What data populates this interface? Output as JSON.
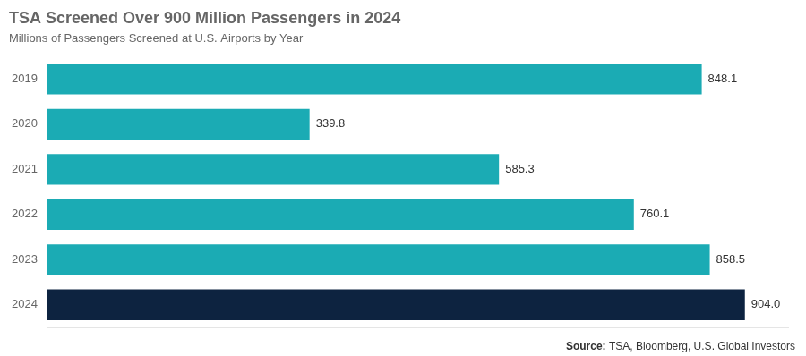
{
  "chart_data": {
    "type": "bar",
    "orientation": "horizontal",
    "title": "TSA Screened Over 900 Million Passengers in 2024",
    "subtitle": "Millions of Passengers Screened at U.S. Airports by Year",
    "source": "Source: TSA, Bloomberg, U.S. Global Investors",
    "categories": [
      "2019",
      "2020",
      "2021",
      "2022",
      "2023",
      "2024"
    ],
    "values": [
      848.1,
      339.8,
      585.3,
      760.1,
      858.5,
      904.0
    ],
    "value_labels": [
      "848.1",
      "339.8",
      "585.3",
      "760.1",
      "858.5",
      "904.0"
    ],
    "colors": [
      "#1BABB4",
      "#1BABB4",
      "#1BABB4",
      "#1BABB4",
      "#1BABB4",
      "#0D2340"
    ],
    "xlim": [
      0,
      960
    ],
    "data_labels": true,
    "tick_labels": "y",
    "grid": false
  }
}
